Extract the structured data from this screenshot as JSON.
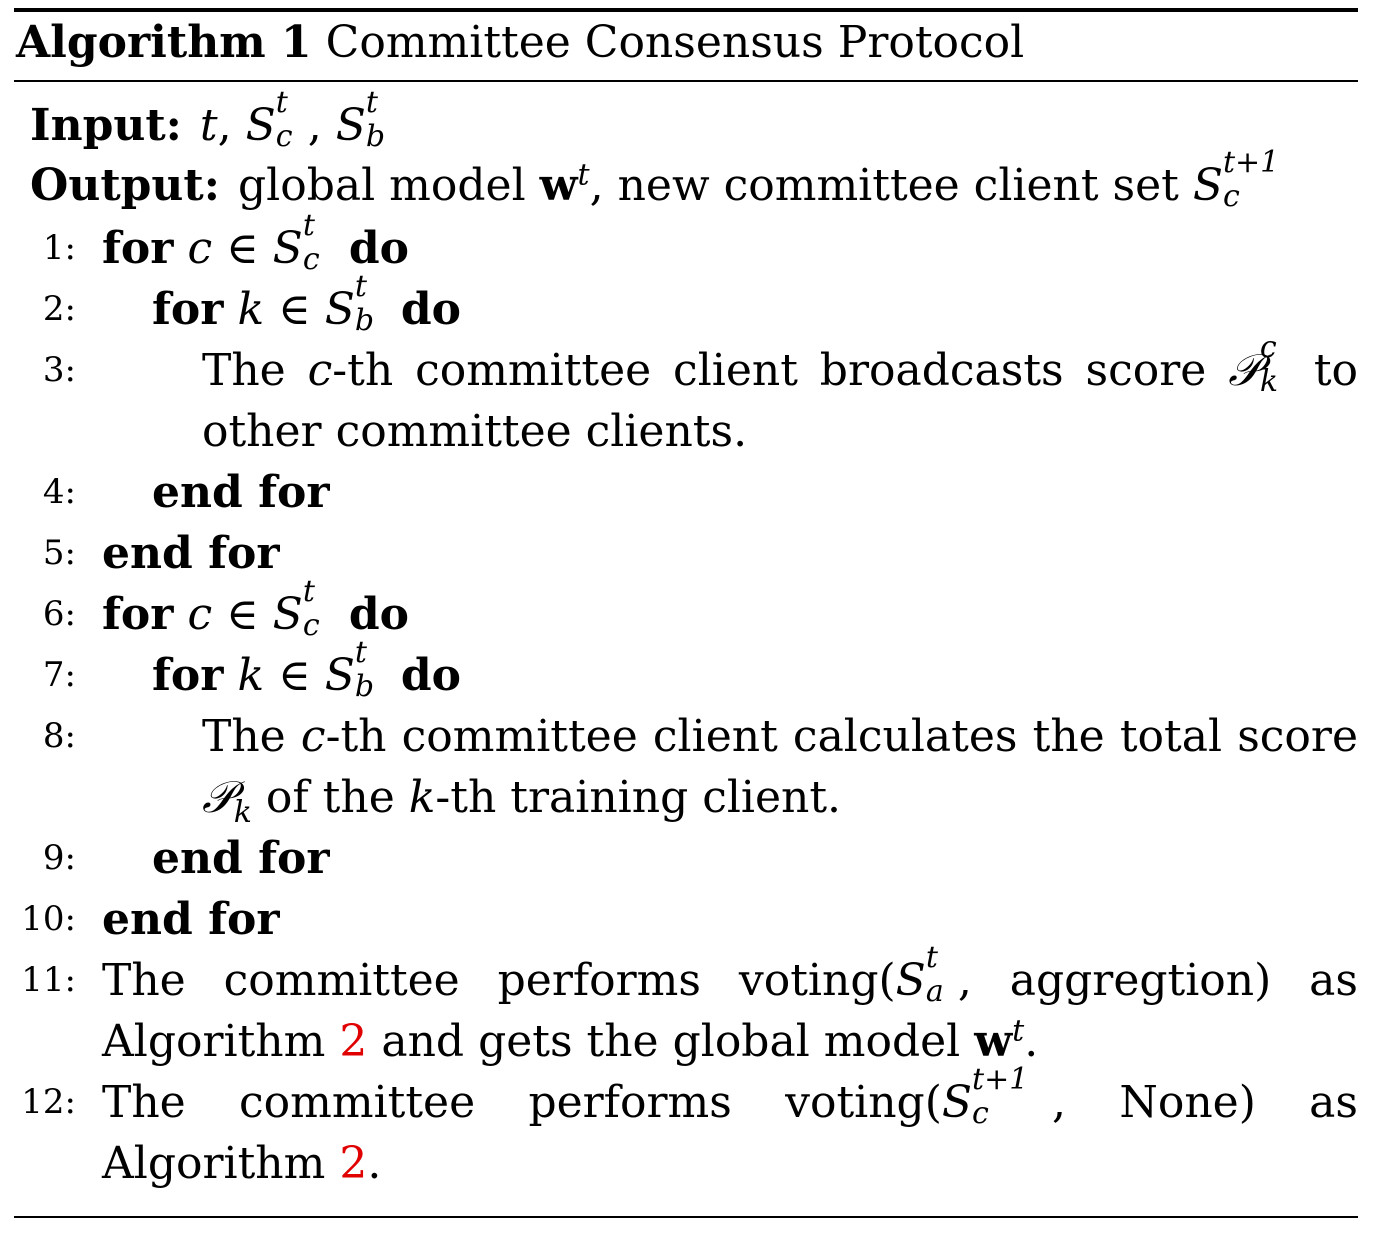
{
  "algorithm": {
    "label": "Algorithm 1",
    "title": "Committee Consensus Protocol",
    "input_label": "Input:",
    "output_label": "Output:",
    "output_text_a": "global model",
    "output_text_b": ", new committee client set",
    "kw_for": "for",
    "kw_do": "do",
    "kw_end_for": "end for",
    "line_numbers": [
      "1:",
      "2:",
      "3:",
      "4:",
      "5:",
      "6:",
      "7:",
      "8:",
      "9:",
      "10:",
      "11:",
      "12:"
    ],
    "line3_text_a": "The",
    "line3_text_b": "-th committee client broadcasts score",
    "line3_text_c": "to other committee clients.",
    "line8_text_a": "The",
    "line8_text_b": "-th committee client calculates the total score",
    "line8_text_c": "of the",
    "line8_text_d": "-th training client.",
    "line11_text_a": "The committee performs voting(",
    "line11_text_b": ", aggregtion) as Algorithm",
    "line11_text_c": "and gets the global model",
    "line12_text_a": "The committee performs voting(",
    "line12_text_b": ", None) as Algorithm",
    "ref_algorithm": "2"
  }
}
